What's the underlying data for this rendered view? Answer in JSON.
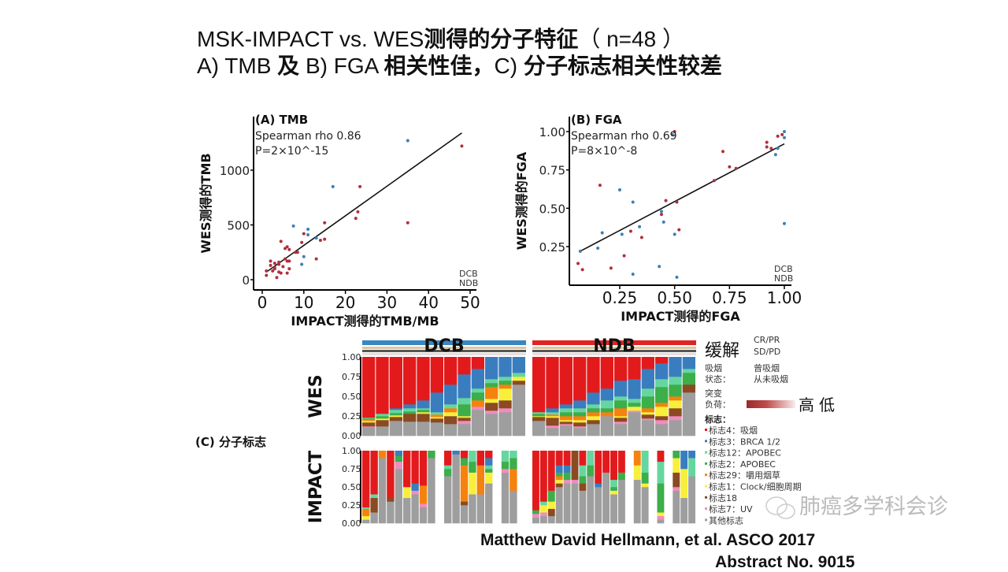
{
  "slide": {
    "title_line1": {
      "latin": "MSK-IMPACT vs. WES",
      "cjk": "测得的分子特征",
      "paren": "（ n=48 ）"
    },
    "title_line2": {
      "a": "A) TMB ",
      "a_cjk": "及",
      "b": " B) FGA ",
      "b_cjk": "相关性佳，",
      "c": "C) ",
      "c_cjk": "分子标志相关性较差"
    },
    "citation_line1": "Matthew David Hellmann, et al.  ASCO  2017",
    "citation_line2": "Abstract No. 9015",
    "watermark": "肺癌多学科会诊",
    "watermark_icon": "wechat-icon"
  },
  "colors": {
    "DCB": "#3d7fb5",
    "NDB": "#b0303c"
  },
  "chart_data": [
    {
      "type": "scatter",
      "title": "(A) TMB",
      "annotation1": "Spearman rho 0.86",
      "annotation2": "P=2×10^-15",
      "xlabel": "IMPACT测得的TMB/MB",
      "ylabel": "WES测得的TMB",
      "xlim": [
        0,
        50
      ],
      "ylim": [
        0,
        1300
      ],
      "xticks": [
        "0",
        "10",
        "20",
        "30",
        "40",
        "50"
      ],
      "xtick_values": [
        0,
        10,
        20,
        30,
        40,
        50
      ],
      "yticks": [
        "0",
        "500",
        "1000"
      ],
      "ytick_values": [
        0,
        500,
        1000
      ],
      "legend": [
        "DCB",
        "NDB"
      ],
      "legend_position": "bottom-right",
      "fit_line": [
        [
          1,
          70
        ],
        [
          48,
          1340
        ]
      ],
      "points": [
        [
          35,
          1270,
          "DCB"
        ],
        [
          48,
          1220,
          "NDB"
        ],
        [
          17,
          850,
          "DCB"
        ],
        [
          23.5,
          850,
          "NDB"
        ],
        [
          22.5,
          560,
          "NDB"
        ],
        [
          23,
          620,
          "NDB"
        ],
        [
          35,
          520,
          "NDB"
        ],
        [
          15,
          520,
          "NDB"
        ],
        [
          7.5,
          490,
          "DCB"
        ],
        [
          11,
          460,
          "DCB"
        ],
        [
          11,
          410,
          "DCB"
        ],
        [
          10,
          420,
          "NDB"
        ],
        [
          13,
          380,
          "DCB"
        ],
        [
          14,
          360,
          "NDB"
        ],
        [
          15,
          370,
          "NDB"
        ],
        [
          4.5,
          350,
          "NDB"
        ],
        [
          9.5,
          340,
          "NDB"
        ],
        [
          6,
          300,
          "NDB"
        ],
        [
          5.5,
          285,
          "NDB"
        ],
        [
          6.5,
          275,
          "NDB"
        ],
        [
          8,
          250,
          "NDB"
        ],
        [
          8.5,
          250,
          "NDB"
        ],
        [
          10,
          210,
          "DCB"
        ],
        [
          13,
          190,
          "NDB"
        ],
        [
          9.5,
          140,
          "DCB"
        ],
        [
          5.5,
          190,
          "NDB"
        ],
        [
          2,
          170,
          "NDB"
        ],
        [
          3,
          150,
          "NDB"
        ],
        [
          4,
          160,
          "NDB"
        ],
        [
          6,
          170,
          "NDB"
        ],
        [
          6.5,
          170,
          "NDB"
        ],
        [
          2,
          130,
          "NDB"
        ],
        [
          3,
          110,
          "NDB"
        ],
        [
          4,
          140,
          "NDB"
        ],
        [
          1,
          80,
          "NDB"
        ],
        [
          2.5,
          80,
          "NDB"
        ],
        [
          4,
          70,
          "NDB"
        ],
        [
          4.5,
          60,
          "NDB"
        ],
        [
          6,
          60,
          "NDB"
        ],
        [
          1,
          40,
          "NDB"
        ],
        [
          3.5,
          20,
          "NDB"
        ],
        [
          6.5,
          100,
          "NDB"
        ],
        [
          3,
          100,
          "NDB"
        ],
        [
          5,
          120,
          "NDB"
        ]
      ]
    },
    {
      "type": "scatter",
      "title": "(B) FGA",
      "annotation1": "Spearman rho 0.69",
      "annotation2": "P=8×10^-8",
      "xlabel": "IMPACT测得的FGA",
      "ylabel": "WES测得的FGA",
      "xlim": [
        0.05,
        1.02
      ],
      "ylim": [
        0.03,
        1.03
      ],
      "xticks": [
        "0.25",
        "0.50",
        "0.75",
        "1.00"
      ],
      "xtick_values": [
        0.25,
        0.5,
        0.75,
        1.0
      ],
      "yticks": [
        "0.25",
        "0.50",
        "0.75",
        "1.00"
      ],
      "ytick_values": [
        0.25,
        0.5,
        0.75,
        1.0
      ],
      "legend": [
        "DCB",
        "NDB"
      ],
      "legend_position": "bottom-right",
      "fit_line": [
        [
          0.07,
          0.22
        ],
        [
          1.0,
          0.92
        ]
      ],
      "points": [
        [
          0.5,
          1.0,
          "NDB"
        ],
        [
          0.49,
          0.98,
          "DCB"
        ],
        [
          1.0,
          1.0,
          "DCB"
        ],
        [
          0.99,
          0.98,
          "NDB"
        ],
        [
          0.97,
          0.97,
          "NDB"
        ],
        [
          0.92,
          0.93,
          "NDB"
        ],
        [
          0.92,
          0.9,
          "NDB"
        ],
        [
          0.94,
          0.89,
          "NDB"
        ],
        [
          1.0,
          0.96,
          "DCB"
        ],
        [
          0.97,
          0.89,
          "DCB"
        ],
        [
          0.96,
          0.85,
          "DCB"
        ],
        [
          0.72,
          0.87,
          "NDB"
        ],
        [
          0.75,
          0.77,
          "NDB"
        ],
        [
          0.78,
          0.76,
          "NDB"
        ],
        [
          0.68,
          0.68,
          "NDB"
        ],
        [
          0.16,
          0.65,
          "NDB"
        ],
        [
          0.25,
          0.62,
          "DCB"
        ],
        [
          0.31,
          0.54,
          "DCB"
        ],
        [
          0.46,
          0.55,
          "NDB"
        ],
        [
          0.51,
          0.54,
          "NDB"
        ],
        [
          0.44,
          0.48,
          "DCB"
        ],
        [
          0.44,
          0.46,
          "NDB"
        ],
        [
          0.45,
          0.41,
          "DCB"
        ],
        [
          0.34,
          0.38,
          "DCB"
        ],
        [
          0.52,
          0.36,
          "NDB"
        ],
        [
          0.35,
          0.31,
          "NDB"
        ],
        [
          0.3,
          0.35,
          "NDB"
        ],
        [
          0.26,
          0.33,
          "DCB"
        ],
        [
          0.17,
          0.34,
          "DCB"
        ],
        [
          0.5,
          0.33,
          "DCB"
        ],
        [
          1.0,
          0.4,
          "DCB"
        ],
        [
          0.07,
          0.22,
          "DCB"
        ],
        [
          0.15,
          0.24,
          "DCB"
        ],
        [
          0.27,
          0.19,
          "NDB"
        ],
        [
          0.06,
          0.14,
          "NDB"
        ],
        [
          0.08,
          0.1,
          "NDB"
        ],
        [
          0.21,
          0.11,
          "NDB"
        ],
        [
          0.43,
          0.12,
          "DCB"
        ],
        [
          0.31,
          0.07,
          "DCB"
        ],
        [
          0.51,
          0.05,
          "DCB"
        ]
      ]
    },
    {
      "type": "bar",
      "stacked": true,
      "title": "(C) 分子标志",
      "group_labels": [
        "DCB",
        "NDB"
      ],
      "row_labels": [
        "WES",
        "IMPACT"
      ],
      "yticks": [
        "1.00",
        "0.75",
        "0.50",
        "0.25",
        "0.00"
      ],
      "ylim": [
        0,
        1
      ],
      "series_names": [
        "标志4：吸烟",
        "标志3：BRCA 1/2",
        "标志12：APOBEC",
        "标志2：APOBEC",
        "标志29：嚼用烟草",
        "标志1：Clock/细胞周期",
        "标志18",
        "标志7：UV",
        "其他标志"
      ],
      "series_colors": [
        "#e31a1c",
        "#3a7dbf",
        "#66d6a0",
        "#3cae4a",
        "#f5820f",
        "#f7ef3a",
        "#8b4a22",
        "#f08cc0",
        "#9e9e9e"
      ],
      "WES": {
        "DCB": [
          [
            0.77,
            0,
            0.01,
            0.01,
            0.02,
            0.02,
            0.05,
            0.01,
            0.11
          ],
          [
            0.72,
            0,
            0.03,
            0.03,
            0,
            0.02,
            0.08,
            0,
            0.12
          ],
          [
            0.65,
            0.02,
            0.04,
            0.03,
            0,
            0.02,
            0.05,
            0,
            0.19
          ],
          [
            0.6,
            0.05,
            0.04,
            0.03,
            0,
            0,
            0.1,
            0,
            0.18
          ],
          [
            0.55,
            0.1,
            0.02,
            0.03,
            0,
            0.02,
            0.1,
            0,
            0.18
          ],
          [
            0.45,
            0.25,
            0.03,
            0,
            0.03,
            0.02,
            0.05,
            0,
            0.17
          ],
          [
            0.35,
            0.25,
            0.05,
            0,
            0.05,
            0.05,
            0.1,
            0,
            0.15
          ],
          [
            0.22,
            0.3,
            0.08,
            0.15,
            0,
            0.02,
            0.04,
            0.04,
            0.15
          ],
          [
            0.15,
            0.25,
            0.05,
            0.1,
            0.08,
            0,
            0,
            0.04,
            0.33
          ],
          [
            0,
            0.28,
            0.05,
            0.05,
            0.15,
            0.05,
            0.1,
            0.04,
            0.28
          ],
          [
            0,
            0.25,
            0.05,
            0.05,
            0.05,
            0.15,
            0.1,
            0.05,
            0.3
          ],
          [
            0,
            0.2,
            0.05,
            0,
            0,
            0.05,
            0.05,
            0,
            0.65
          ]
        ],
        "NDB": [
          [
            0.7,
            0,
            0.02,
            0.03,
            0,
            0.01,
            0.05,
            0,
            0.19
          ],
          [
            0.65,
            0.05,
            0.03,
            0,
            0.02,
            0.02,
            0.1,
            0.03,
            0.1
          ],
          [
            0.6,
            0.05,
            0.05,
            0.05,
            0.05,
            0.02,
            0.03,
            0.02,
            0.13
          ],
          [
            0.55,
            0.1,
            0.05,
            0.05,
            0.05,
            0.03,
            0.05,
            0.02,
            0.1
          ],
          [
            0.45,
            0.15,
            0.05,
            0.05,
            0.05,
            0.05,
            0.05,
            0,
            0.15
          ],
          [
            0.4,
            0.15,
            0.1,
            0.05,
            0.05,
            0,
            0,
            0,
            0.25
          ],
          [
            0.3,
            0.2,
            0.05,
            0.1,
            0.1,
            0.02,
            0.05,
            0.03,
            0.15
          ],
          [
            0.28,
            0.25,
            0.05,
            0.05,
            0,
            0.05,
            0,
            0.02,
            0.3
          ],
          [
            0.15,
            0.25,
            0.1,
            0.15,
            0.05,
            0.03,
            0.05,
            0.02,
            0.2
          ],
          [
            0.08,
            0.2,
            0.1,
            0.2,
            0.05,
            0.12,
            0.05,
            0.05,
            0.15
          ],
          [
            0,
            0.25,
            0.1,
            0.15,
            0.05,
            0.1,
            0.1,
            0.05,
            0.2
          ],
          [
            0,
            0.15,
            0.05,
            0.15,
            0,
            0,
            0.1,
            0,
            0.55
          ]
        ]
      },
      "IMPACT": {
        "DCB": [
          [
            0.78,
            0,
            0.02,
            0,
            0.1,
            0.05,
            0,
            0,
            0.05
          ],
          [
            0.6,
            0,
            0.05,
            0,
            0,
            0,
            0.2,
            0,
            0.15
          ],
          [
            0,
            0,
            0,
            0,
            0.1,
            0,
            0,
            0,
            0.9
          ],
          [
            0.65,
            0,
            0,
            0,
            0,
            0,
            0.05,
            0,
            0.3
          ],
          [
            0,
            0.07,
            0,
            0.08,
            0,
            0,
            0,
            0.1,
            0.75
          ],
          [
            0.5,
            0,
            0,
            0,
            0,
            0.15,
            0,
            0,
            0.35
          ],
          [
            0.45,
            0.1,
            0,
            0,
            0,
            0,
            0,
            0.05,
            0.4
          ],
          [
            0.48,
            0,
            0,
            0,
            0.25,
            0,
            0,
            0.05,
            0.22
          ],
          [
            0,
            0,
            0,
            0.1,
            0,
            0,
            0,
            0,
            0.9
          ],
          null,
          [
            0.2,
            0,
            0.05,
            0.1,
            0,
            0,
            0,
            0,
            0.65
          ],
          [
            0,
            0.05,
            0,
            0,
            0,
            0,
            0,
            0,
            0.95
          ],
          [
            0.1,
            0,
            0,
            0.1,
            0.5,
            0,
            0.05,
            0,
            0.25
          ],
          [
            0,
            0,
            0.15,
            0.15,
            0,
            0.3,
            0,
            0,
            0.4
          ],
          [
            0.2,
            0,
            0,
            0,
            0.4,
            0,
            0,
            0,
            0.4
          ],
          [
            0.1,
            0.1,
            0.05,
            0.05,
            0,
            0.15,
            0,
            0,
            0.55
          ],
          null,
          [
            0,
            0,
            0.15,
            0.1,
            0,
            0,
            0,
            0.05,
            0.7
          ],
          [
            0,
            0,
            0.1,
            0.15,
            0.3,
            0,
            0,
            0,
            0.45
          ],
          null
        ],
        "NDB": [
          [
            0.82,
            0,
            0,
            0.05,
            0,
            0,
            0,
            0.05,
            0.08
          ],
          [
            0.7,
            0,
            0.05,
            0,
            0,
            0.1,
            0,
            0.05,
            0.1
          ],
          [
            0.55,
            0,
            0,
            0.15,
            0,
            0.1,
            0.1,
            0,
            0.1
          ],
          [
            0.2,
            0.1,
            0,
            0.05,
            0.05,
            0.05,
            0.05,
            0,
            0.5
          ],
          [
            0.2,
            0.1,
            0,
            0.1,
            0,
            0,
            0,
            0.05,
            0.55
          ],
          [
            0,
            0,
            0,
            0,
            0,
            0,
            0.4,
            0.05,
            0.55
          ],
          [
            0.2,
            0,
            0.15,
            0.1,
            0,
            0,
            0.1,
            0,
            0.45
          ],
          [
            0,
            0,
            0.2,
            0.15,
            0,
            0,
            0,
            0,
            0.65
          ],
          [
            0.45,
            0.05,
            0,
            0,
            0,
            0,
            0,
            0,
            0.5
          ],
          [
            0.3,
            0,
            0,
            0,
            0,
            0,
            0,
            0,
            0.7
          ],
          [
            0.4,
            0,
            0.1,
            0.05,
            0,
            0.05,
            0,
            0,
            0.4
          ],
          [
            0.3,
            0,
            0,
            0.1,
            0,
            0,
            0,
            0,
            0.6
          ],
          null,
          [
            0,
            0,
            0,
            0,
            0.2,
            0.2,
            0,
            0,
            0.6
          ],
          [
            0,
            0,
            0.3,
            0.15,
            0,
            0.05,
            0,
            0,
            0.5
          ],
          null,
          [
            0.15,
            0,
            0.3,
            0.4,
            0,
            0.05,
            0,
            0.05,
            0.05
          ],
          null,
          [
            0,
            0,
            0,
            0.1,
            0,
            0.2,
            0.2,
            0.05,
            0.45
          ],
          [
            0,
            0.25,
            0,
            0,
            0,
            0.4,
            0,
            0,
            0.35
          ],
          [
            0,
            0.1,
            0.25,
            0,
            0,
            0,
            0,
            0,
            0.65
          ]
        ]
      },
      "legend": {
        "response_label": "缓解",
        "response_items": [
          "CR/PR",
          "SD/PD"
        ],
        "smoking_label_1": "吸烟",
        "smoking_label_2": "状态：",
        "smoking_items": [
          "曾吸烟",
          "从未吸烟"
        ],
        "burden_label_1": "突变",
        "burden_label_2": "负荷：",
        "burden_high": "高",
        "burden_low": "低",
        "signature_label": "标志："
      }
    }
  ]
}
